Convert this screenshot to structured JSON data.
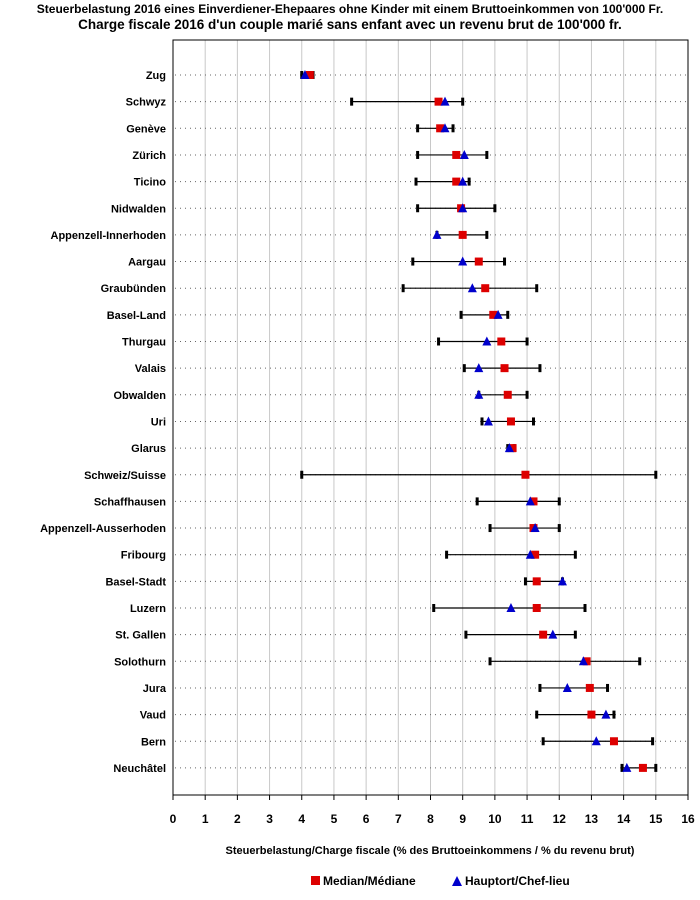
{
  "chart_data": {
    "type": "dot-range",
    "title": "Steuerbelastung 2016 eines Einverdiener-Ehepaares ohne Kinder mit einem Bruttoeinkommen von 100'000 Fr.",
    "subtitle": "Charge fiscale 2016 d'un couple marié sans enfant avec un revenu brut de 100'000 fr.",
    "xlabel": "Steuerbelastung/Charge fiscale (% des Bruttoeinkommens / % du revenu brut)",
    "xlim": [
      0,
      16
    ],
    "xticks": [
      "0",
      "1",
      "2",
      "3",
      "4",
      "5",
      "6",
      "7",
      "8",
      "9",
      "10",
      "11",
      "12",
      "13",
      "14",
      "15",
      "16"
    ],
    "legend": {
      "median": "Median/Médiane",
      "capital": "Hauptort/Chef-lieu",
      "position": "bottom"
    },
    "colors": {
      "median": "#dd0000",
      "capital": "#0000cc",
      "range": "#000000",
      "grid": "#c8c8c8"
    },
    "rows": [
      {
        "name": "Zug",
        "min": 4.0,
        "max": 4.35,
        "median": 4.25,
        "capital": 4.1
      },
      {
        "name": "Schwyz",
        "min": 5.55,
        "max": 9.0,
        "median": 8.25,
        "capital": 8.45
      },
      {
        "name": "Genève",
        "min": 7.6,
        "max": 8.7,
        "median": 8.3,
        "capital": 8.45
      },
      {
        "name": "Zürich",
        "min": 7.6,
        "max": 9.75,
        "median": 8.8,
        "capital": 9.05
      },
      {
        "name": "Ticino",
        "min": 7.55,
        "max": 9.2,
        "median": 8.8,
        "capital": 9.0
      },
      {
        "name": "Nidwalden",
        "min": 7.6,
        "max": 10.0,
        "median": 8.95,
        "capital": 9.0
      },
      {
        "name": "Appenzell-Innerhoden",
        "min": 8.2,
        "max": 9.75,
        "median": 9.0,
        "capital": 8.2
      },
      {
        "name": "Aargau",
        "min": 7.45,
        "max": 10.3,
        "median": 9.5,
        "capital": 9.0
      },
      {
        "name": "Graubünden",
        "min": 7.15,
        "max": 11.3,
        "median": 9.7,
        "capital": 9.3
      },
      {
        "name": "Basel-Land",
        "min": 8.95,
        "max": 10.4,
        "median": 9.95,
        "capital": 10.1
      },
      {
        "name": "Thurgau",
        "min": 8.25,
        "max": 11.0,
        "median": 10.2,
        "capital": 9.75
      },
      {
        "name": "Valais",
        "min": 9.05,
        "max": 11.4,
        "median": 10.3,
        "capital": 9.5
      },
      {
        "name": "Obwalden",
        "min": 9.5,
        "max": 11.0,
        "median": 10.4,
        "capital": 9.5
      },
      {
        "name": "Uri",
        "min": 9.6,
        "max": 11.2,
        "median": 10.5,
        "capital": 9.8
      },
      {
        "name": "Glarus",
        "min": 10.4,
        "max": 10.6,
        "median": 10.55,
        "capital": 10.45
      },
      {
        "name": "Schweiz/Suisse",
        "min": 4.0,
        "max": 15.0,
        "median": 10.95,
        "capital": null
      },
      {
        "name": "Schaffhausen",
        "min": 9.45,
        "max": 12.0,
        "median": 11.2,
        "capital": 11.1
      },
      {
        "name": "Appenzell-Ausserhoden",
        "min": 9.85,
        "max": 12.0,
        "median": 11.2,
        "capital": 11.25
      },
      {
        "name": "Fribourg",
        "min": 8.5,
        "max": 12.5,
        "median": 11.25,
        "capital": 11.1
      },
      {
        "name": "Basel-Stadt",
        "min": 10.95,
        "max": 12.1,
        "median": 11.3,
        "capital": 12.1
      },
      {
        "name": "Luzern",
        "min": 8.1,
        "max": 12.8,
        "median": 11.3,
        "capital": 10.5
      },
      {
        "name": "St. Gallen",
        "min": 9.1,
        "max": 12.5,
        "median": 11.5,
        "capital": 11.8
      },
      {
        "name": "Solothurn",
        "min": 9.85,
        "max": 14.5,
        "median": 12.85,
        "capital": 12.75
      },
      {
        "name": "Jura",
        "min": 11.4,
        "max": 13.5,
        "median": 12.95,
        "capital": 12.25
      },
      {
        "name": "Vaud",
        "min": 11.3,
        "max": 13.7,
        "median": 13.0,
        "capital": 13.45
      },
      {
        "name": "Bern",
        "min": 11.5,
        "max": 14.9,
        "median": 13.7,
        "capital": 13.15
      },
      {
        "name": "Neuchâtel",
        "min": 13.95,
        "max": 15.0,
        "median": 14.6,
        "capital": 14.1
      }
    ]
  }
}
